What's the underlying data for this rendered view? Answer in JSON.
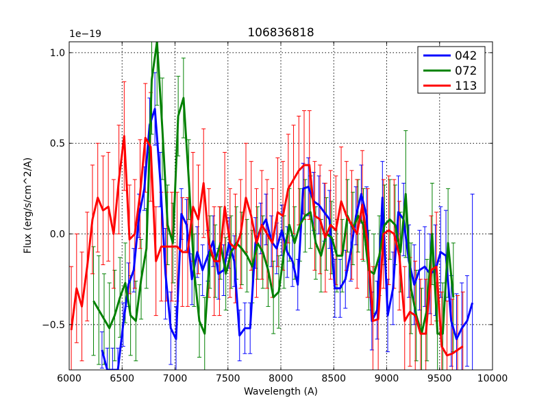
{
  "chart_data": {
    "type": "line",
    "title": "106836818",
    "xlabel": "Wavelength (A)",
    "ylabel": "Flux (erg/s/cm^2/A)",
    "y_multiplier_label": "1e−19",
    "xlim": [
      6000,
      10000
    ],
    "ylim": [
      -0.75,
      1.06
    ],
    "xticks": [
      6000,
      6500,
      7000,
      7500,
      8000,
      8500,
      9000,
      9500,
      10000
    ],
    "xtick_labels": [
      "6000",
      "6500",
      "7000",
      "7500",
      "8000",
      "8500",
      "9000",
      "9500",
      "10000"
    ],
    "yticks": [
      -0.5,
      0.0,
      0.5,
      1.0
    ],
    "ytick_labels": [
      "−0.5",
      "0.0",
      "0.5",
      "1.0"
    ],
    "grid": true,
    "legend_position": "top-right",
    "series": [
      {
        "name": "042",
        "color": "#0000ff",
        "x": [
          6310,
          6360,
          6410,
          6460,
          6510,
          6560,
          6610,
          6660,
          6710,
          6760,
          6810,
          6860,
          6910,
          6960,
          7010,
          7060,
          7110,
          7160,
          7210,
          7260,
          7310,
          7360,
          7410,
          7460,
          7510,
          7560,
          7610,
          7660,
          7710,
          7760,
          7810,
          7860,
          7910,
          7960,
          8010,
          8060,
          8110,
          8160,
          8210,
          8260,
          8310,
          8360,
          8410,
          8460,
          8510,
          8560,
          8610,
          8660,
          8710,
          8760,
          8810,
          8860,
          8910,
          8960,
          9010,
          9060,
          9110,
          9160,
          9210,
          9260,
          9310,
          9360,
          9410,
          9460,
          9510,
          9560,
          9610,
          9660,
          9710,
          9760,
          9810
        ],
        "y": [
          -0.64,
          -0.75,
          -0.75,
          -0.75,
          -0.5,
          -0.28,
          -0.2,
          0.1,
          0.25,
          0.6,
          0.69,
          0.3,
          -0.22,
          -0.52,
          -0.58,
          0.11,
          0.05,
          -0.25,
          -0.1,
          -0.2,
          -0.12,
          -0.04,
          -0.22,
          -0.2,
          -0.05,
          -0.15,
          -0.56,
          -0.52,
          -0.52,
          -0.05,
          0.03,
          0.08,
          -0.04,
          -0.08,
          0.02,
          -0.1,
          -0.15,
          -0.28,
          0.25,
          0.26,
          0.18,
          0.16,
          0.12,
          0.08,
          -0.3,
          -0.3,
          -0.25,
          -0.1,
          0.1,
          0.22,
          0.1,
          -0.48,
          -0.42,
          0.2,
          -0.45,
          -0.3,
          0.12,
          0.08,
          -0.15,
          -0.28,
          -0.2,
          -0.18,
          -0.22,
          -0.2,
          -0.1,
          -0.12,
          -0.48,
          -0.58,
          -0.52,
          -0.48,
          -0.38
        ],
        "yerr": [
          0.1,
          0.12,
          0.12,
          0.12,
          0.12,
          0.12,
          0.12,
          0.12,
          0.12,
          0.15,
          0.2,
          0.15,
          0.25,
          0.2,
          0.18,
          0.14,
          0.14,
          0.14,
          0.14,
          0.14,
          0.14,
          0.14,
          0.14,
          0.14,
          0.14,
          0.14,
          0.14,
          0.14,
          0.14,
          0.14,
          0.14,
          0.14,
          0.14,
          0.14,
          0.14,
          0.14,
          0.14,
          0.14,
          0.14,
          0.16,
          0.16,
          0.16,
          0.16,
          0.16,
          0.16,
          0.16,
          0.16,
          0.16,
          0.16,
          0.16,
          0.16,
          0.16,
          0.16,
          0.2,
          0.2,
          0.2,
          0.2,
          0.2,
          0.2,
          0.22,
          0.22,
          0.22,
          0.22,
          0.25,
          0.25,
          0.25,
          0.25,
          0.25,
          0.25,
          0.25,
          0.6
        ]
      },
      {
        "name": "072",
        "color": "#008000",
        "x": [
          6230,
          6280,
          6330,
          6380,
          6430,
          6480,
          6530,
          6580,
          6630,
          6680,
          6730,
          6780,
          6830,
          6880,
          6930,
          6980,
          7030,
          7080,
          7130,
          7180,
          7230,
          7280,
          7330,
          7380,
          7430,
          7480,
          7530,
          7580,
          7630,
          7680,
          7730,
          7780,
          7830,
          7880,
          7930,
          7980,
          8030,
          8080,
          8130,
          8180,
          8230,
          8280,
          8330,
          8380,
          8430,
          8480,
          8530,
          8580,
          8630,
          8680,
          8730,
          8780,
          8830,
          8880,
          8930,
          8980,
          9030,
          9080,
          9130,
          9180,
          9230,
          9280,
          9330,
          9380,
          9430,
          9480,
          9530,
          9580,
          9630
        ],
        "y": [
          -0.37,
          -0.42,
          -0.47,
          -0.52,
          -0.45,
          -0.35,
          -0.27,
          -0.45,
          -0.48,
          -0.25,
          -0.08,
          0.85,
          1.06,
          0.58,
          0.05,
          -0.05,
          0.65,
          0.75,
          0.3,
          -0.2,
          -0.48,
          -0.55,
          -0.1,
          -0.15,
          -0.05,
          -0.22,
          -0.1,
          -0.05,
          -0.08,
          -0.12,
          -0.18,
          -0.05,
          -0.1,
          -0.2,
          -0.35,
          -0.32,
          -0.1,
          0.05,
          -0.05,
          0.05,
          0.1,
          0.12,
          -0.05,
          -0.12,
          0.0,
          -0.02,
          -0.12,
          -0.12,
          0.1,
          0.03,
          0.1,
          0.05,
          -0.2,
          -0.22,
          -0.12,
          0.05,
          0.08,
          0.05,
          -0.1,
          0.22,
          -0.3,
          -0.45,
          -0.55,
          -0.42,
          0.0,
          -0.55,
          -0.55,
          -0.05,
          -0.35
        ],
        "yerr": [
          0.3,
          0.3,
          0.25,
          0.25,
          0.25,
          0.22,
          0.22,
          0.22,
          0.22,
          0.22,
          0.22,
          0.3,
          0.35,
          0.28,
          0.22,
          0.22,
          0.22,
          0.22,
          0.22,
          0.2,
          0.2,
          0.2,
          0.2,
          0.2,
          0.2,
          0.2,
          0.2,
          0.2,
          0.2,
          0.2,
          0.2,
          0.2,
          0.2,
          0.2,
          0.2,
          0.2,
          0.2,
          0.2,
          0.2,
          0.2,
          0.2,
          0.2,
          0.2,
          0.2,
          0.2,
          0.2,
          0.2,
          0.2,
          0.2,
          0.2,
          0.2,
          0.2,
          0.22,
          0.22,
          0.22,
          0.22,
          0.22,
          0.22,
          0.22,
          0.35,
          0.25,
          0.25,
          0.25,
          0.28,
          0.28,
          0.28,
          0.28,
          0.3,
          0.3
        ]
      },
      {
        "name": "113",
        "color": "#ff0000",
        "x": [
          6020,
          6070,
          6120,
          6170,
          6220,
          6270,
          6320,
          6370,
          6420,
          6470,
          6520,
          6570,
          6620,
          6670,
          6720,
          6770,
          6820,
          6870,
          6920,
          6970,
          7020,
          7070,
          7120,
          7170,
          7220,
          7270,
          7320,
          7370,
          7420,
          7470,
          7520,
          7570,
          7620,
          7670,
          7720,
          7770,
          7820,
          7870,
          7920,
          7970,
          8020,
          8070,
          8120,
          8170,
          8220,
          8270,
          8320,
          8370,
          8420,
          8470,
          8520,
          8570,
          8620,
          8670,
          8720,
          8770,
          8820,
          8870,
          8920,
          8970,
          9020,
          9070,
          9120,
          9170,
          9220,
          9270,
          9320,
          9370,
          9420,
          9470,
          9520,
          9570,
          9620,
          9670,
          9720
        ],
        "y": [
          -0.53,
          -0.3,
          -0.4,
          -0.18,
          0.08,
          0.2,
          0.13,
          0.15,
          0.0,
          0.3,
          0.54,
          -0.03,
          0.0,
          0.22,
          0.53,
          0.48,
          -0.15,
          -0.07,
          -0.07,
          -0.07,
          -0.07,
          -0.1,
          -0.1,
          0.15,
          0.08,
          0.28,
          -0.05,
          -0.15,
          -0.15,
          0.15,
          -0.05,
          -0.08,
          0.0,
          0.2,
          0.1,
          -0.05,
          0.05,
          0.0,
          -0.05,
          0.12,
          0.1,
          0.25,
          0.3,
          0.35,
          0.38,
          0.38,
          0.1,
          0.08,
          -0.02,
          0.05,
          0.02,
          0.18,
          0.1,
          0.05,
          0.0,
          0.16,
          -0.05,
          -0.48,
          -0.47,
          0.0,
          0.02,
          0.0,
          -0.12,
          -0.48,
          -0.43,
          -0.45,
          -0.55,
          -0.55,
          -0.2,
          -0.18,
          -0.62,
          -0.67,
          -0.66,
          -0.64,
          -0.62
        ],
        "yerr": [
          0.35,
          0.3,
          0.3,
          0.3,
          0.3,
          0.3,
          0.3,
          0.3,
          0.3,
          0.3,
          0.3,
          0.3,
          0.3,
          0.3,
          0.3,
          0.3,
          0.3,
          0.3,
          0.3,
          0.3,
          0.3,
          0.3,
          0.3,
          0.3,
          0.3,
          0.3,
          0.3,
          0.3,
          0.3,
          0.3,
          0.3,
          0.3,
          0.3,
          0.3,
          0.3,
          0.3,
          0.3,
          0.3,
          0.3,
          0.3,
          0.3,
          0.3,
          0.3,
          0.3,
          0.3,
          0.3,
          0.3,
          0.3,
          0.3,
          0.3,
          0.3,
          0.3,
          0.3,
          0.3,
          0.3,
          0.3,
          0.3,
          0.3,
          0.3,
          0.3,
          0.3,
          0.3,
          0.3,
          0.3,
          0.3,
          0.3,
          0.3,
          0.3,
          0.3,
          0.3,
          0.3,
          0.3,
          0.3,
          0.3,
          0.3
        ]
      }
    ]
  }
}
